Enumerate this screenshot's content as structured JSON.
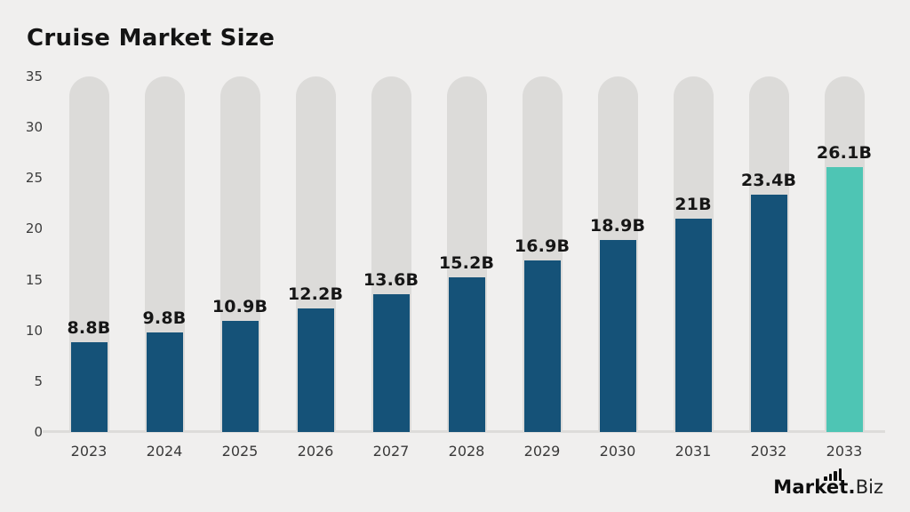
{
  "title": "Cruise Market Size",
  "chart_data": {
    "type": "bar",
    "title": "Cruise Market Size",
    "categories": [
      "2023",
      "2024",
      "2025",
      "2026",
      "2027",
      "2028",
      "2029",
      "2030",
      "2031",
      "2032",
      "2033"
    ],
    "values": [
      8.8,
      9.8,
      10.9,
      12.2,
      13.6,
      15.2,
      16.9,
      18.9,
      21,
      23.4,
      26.1
    ],
    "value_labels": [
      "8.8B",
      "9.8B",
      "10.9B",
      "12.2B",
      "13.6B",
      "15.2B",
      "16.9B",
      "18.9B",
      "21B",
      "23.4B",
      "26.1B"
    ],
    "xlabel": "",
    "ylabel": "",
    "ylim": [
      0,
      35
    ],
    "yticks": [
      0,
      5,
      10,
      15,
      20,
      25,
      30,
      35
    ],
    "grid": false,
    "legend": null,
    "bar_color": "#155278",
    "highlight_color": "#4ec5b4",
    "highlight_index": 10,
    "track_color": "#dcdbd9",
    "background_color": "#f0efee"
  },
  "branding": {
    "logo_bold": "Market.",
    "logo_light": "Biz",
    "logo_icon": "mini-bar-chart-icon"
  }
}
